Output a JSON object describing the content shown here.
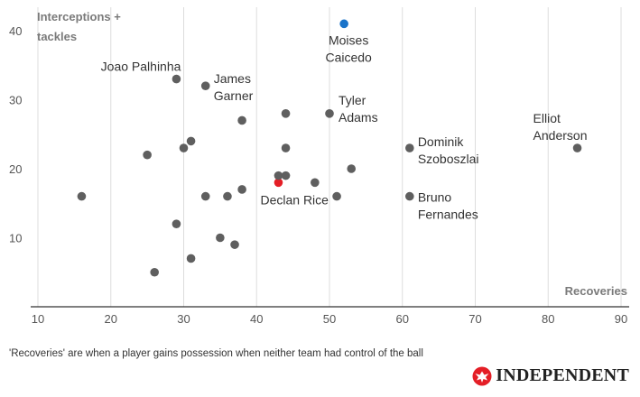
{
  "colors": {
    "default_point": "#5f5f5f",
    "highlight_point": "#e41e26",
    "caicedo_point": "#1a73c9",
    "axis": "#333333",
    "grid": "#dddddd",
    "brand_mark": "#e41e26"
  },
  "chart_data": {
    "type": "scatter",
    "title": "",
    "xlabel": "Recoveries",
    "ylabel": "Interceptions + tackles",
    "ylabel_lines": [
      "Interceptions +",
      "tackles"
    ],
    "xlim": [
      10,
      90
    ],
    "ylim": [
      0,
      45
    ],
    "x_ticks": [
      10,
      20,
      30,
      40,
      50,
      60,
      70,
      80,
      90
    ],
    "y_ticks": [
      10,
      20,
      30,
      40
    ],
    "grid": "vertical",
    "points": [
      {
        "x": 52,
        "y": 41,
        "label": [
          "Moises",
          "Caicedo"
        ],
        "color": "caicedo_point"
      },
      {
        "x": 29,
        "y": 33,
        "label": [
          "Joao Palhinha"
        ]
      },
      {
        "x": 33,
        "y": 32,
        "label": [
          "James",
          "Garner"
        ]
      },
      {
        "x": 50,
        "y": 28,
        "label": [
          "Tyler",
          "Adams"
        ]
      },
      {
        "x": 84,
        "y": 23,
        "label": [
          "Elliot",
          "Anderson"
        ]
      },
      {
        "x": 61,
        "y": 23,
        "label": [
          "Dominik",
          "Szoboszlai"
        ]
      },
      {
        "x": 61,
        "y": 16,
        "label": [
          "Bruno",
          "Fernandes"
        ]
      },
      {
        "x": 43,
        "y": 18,
        "label": [
          "Declan Rice"
        ],
        "color": "highlight_point"
      },
      {
        "x": 44,
        "y": 28
      },
      {
        "x": 38,
        "y": 27
      },
      {
        "x": 31,
        "y": 24
      },
      {
        "x": 30,
        "y": 23
      },
      {
        "x": 44,
        "y": 23
      },
      {
        "x": 25,
        "y": 22
      },
      {
        "x": 53,
        "y": 20
      },
      {
        "x": 43,
        "y": 19
      },
      {
        "x": 44,
        "y": 19
      },
      {
        "x": 48,
        "y": 18
      },
      {
        "x": 38,
        "y": 17
      },
      {
        "x": 16,
        "y": 16
      },
      {
        "x": 33,
        "y": 16
      },
      {
        "x": 36,
        "y": 16
      },
      {
        "x": 51,
        "y": 16
      },
      {
        "x": 29,
        "y": 12
      },
      {
        "x": 35,
        "y": 10
      },
      {
        "x": 37,
        "y": 9
      },
      {
        "x": 31,
        "y": 7
      },
      {
        "x": 26,
        "y": 5
      }
    ]
  },
  "footnote": "'Recoveries' are when a player gains possession when neither team had control of the ball",
  "brand": {
    "name": "INDEPENDENT",
    "icon": "eagle-logo-icon"
  }
}
